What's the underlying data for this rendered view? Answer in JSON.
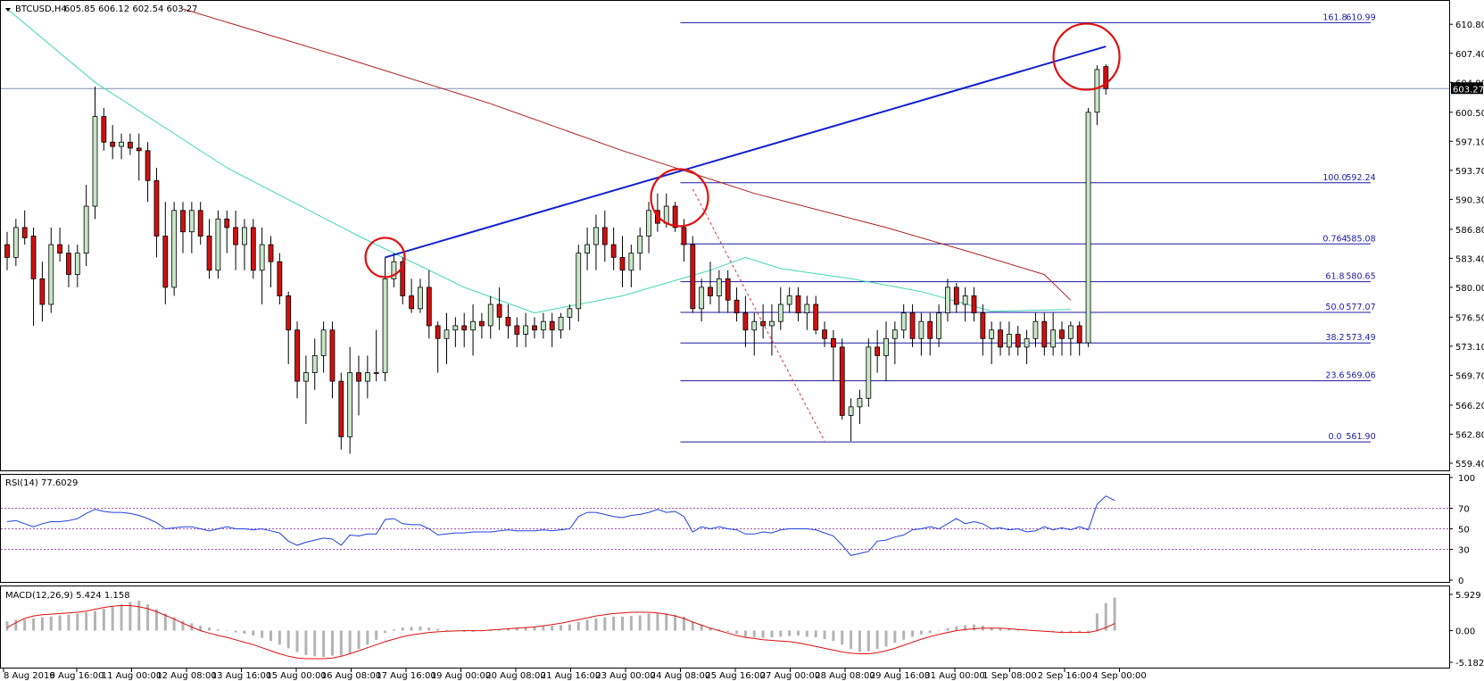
{
  "header": {
    "symbol": "BTCUSD,H4",
    "ohlc": "605.85 606.12 602.54 603.27",
    "current_price_label": "603.27"
  },
  "rsi_header": "RSI(14) 77.6029",
  "macd_header": "MACD(12,26,9) 5.424 1.158",
  "colors": {
    "bull_body": "#c8e6c8",
    "bear_body": "#d01010",
    "trendline": "#1020d0",
    "fib_line": "#1a1aa0",
    "ma_fast": "#40d8b0",
    "ma_slow": "#b02020",
    "circle": "#e01010",
    "rsi_line": "#2040e0",
    "macd_hist": "#b4b4b4",
    "macd_signal": "#e01010"
  },
  "chart_data": [
    {
      "type": "candlestick",
      "title": "BTCUSD,H4",
      "ylim": [
        559.4,
        612.6
      ],
      "y_ticks": [
        "610.80",
        "607.40",
        "604.00",
        "600.50",
        "597.10",
        "593.70",
        "590.30",
        "586.80",
        "583.40",
        "580.00",
        "576.50",
        "573.10",
        "569.70",
        "566.20",
        "562.80",
        "559.40"
      ],
      "x_ticks": [
        "8 Aug 2016",
        "9 Aug 16:00",
        "11 Aug 00:00",
        "12 Aug 08:00",
        "13 Aug 16:00",
        "15 Aug 00:00",
        "16 Aug 08:00",
        "17 Aug 16:00",
        "19 Aug 00:00",
        "20 Aug 08:00",
        "21 Aug 16:00",
        "23 Aug 00:00",
        "24 Aug 08:00",
        "25 Aug 16:00",
        "27 Aug 00:00",
        "28 Aug 08:00",
        "29 Aug 16:00",
        "31 Aug 00:00",
        "1 Sep 08:00",
        "2 Sep 16:00",
        "4 Sep 00:00"
      ],
      "fib_levels": [
        {
          "label": "161.8",
          "price": "610.99",
          "value": 610.99
        },
        {
          "label": "100.0",
          "price": "592.24",
          "value": 592.24
        },
        {
          "label": "0.764",
          "price": "585.08",
          "value": 585.08
        },
        {
          "label": "61.8",
          "price": "580.65",
          "value": 580.65
        },
        {
          "label": "50.0",
          "price": "577.07",
          "value": 577.07
        },
        {
          "label": "38.2",
          "price": "573.49",
          "value": 573.49
        },
        {
          "label": "23.6",
          "price": "569.06",
          "value": 569.06
        },
        {
          "label": "0.0",
          "price": "561.90",
          "value": 561.9
        }
      ],
      "current_price": 603.27,
      "candles": [
        [
          585,
          586.5,
          582,
          583.5
        ],
        [
          583.5,
          588,
          582.5,
          587
        ],
        [
          587,
          589,
          585,
          585.8
        ],
        [
          586,
          587,
          575.5,
          581
        ],
        [
          581,
          583,
          576,
          578
        ],
        [
          578,
          587,
          577,
          585
        ],
        [
          585,
          587,
          583,
          584
        ],
        [
          584,
          585,
          580,
          581.5
        ],
        [
          581.5,
          585,
          580,
          584
        ],
        [
          584,
          592,
          582.5,
          589.5
        ],
        [
          589.5,
          603.5,
          588,
          600
        ],
        [
          600,
          601,
          596,
          597
        ],
        [
          597,
          599,
          595,
          596.5
        ],
        [
          596.5,
          598,
          595,
          597
        ],
        [
          597,
          598,
          595.5,
          596.3
        ],
        [
          596.3,
          598,
          592.5,
          596
        ],
        [
          596,
          597,
          590,
          592.5
        ],
        [
          592.5,
          594,
          583.5,
          586
        ],
        [
          586,
          590,
          578,
          580
        ],
        [
          580,
          590,
          579,
          589
        ],
        [
          589,
          590,
          584,
          586.5
        ],
        [
          586.5,
          590,
          584,
          589
        ],
        [
          589,
          590,
          585,
          586
        ],
        [
          586,
          588,
          581,
          582
        ],
        [
          582,
          589,
          581,
          588
        ],
        [
          588,
          589,
          584,
          587
        ],
        [
          587,
          589,
          582,
          585
        ],
        [
          585,
          588,
          582,
          587
        ],
        [
          587,
          588,
          581,
          582
        ],
        [
          582,
          587,
          578,
          585
        ],
        [
          585,
          586,
          580,
          583
        ],
        [
          583,
          584,
          578,
          579
        ],
        [
          579,
          579.5,
          571,
          575
        ],
        [
          575,
          576,
          567,
          569
        ],
        [
          569,
          572,
          564,
          570
        ],
        [
          570,
          574,
          568,
          572
        ],
        [
          572,
          576,
          570,
          575
        ],
        [
          575,
          576,
          567,
          569
        ],
        [
          569,
          570,
          561,
          562.5
        ],
        [
          562.5,
          573,
          560.5,
          570
        ],
        [
          570,
          572,
          565,
          569
        ],
        [
          569,
          572,
          567,
          570
        ],
        [
          570,
          575,
          569,
          570
        ],
        [
          570,
          583.5,
          569,
          581
        ],
        [
          581,
          584,
          580,
          583
        ],
        [
          583,
          583.5,
          578,
          579
        ],
        [
          579,
          581,
          577,
          577.5
        ],
        [
          577.5,
          581,
          577,
          580
        ],
        [
          580,
          582,
          574,
          575.5
        ],
        [
          575.5,
          576,
          570,
          574
        ],
        [
          574,
          577,
          571,
          575
        ],
        [
          575,
          576.5,
          573,
          575.5
        ],
        [
          575.5,
          577,
          573,
          575
        ],
        [
          575,
          578,
          572,
          576
        ],
        [
          576,
          577,
          574,
          575.5
        ],
        [
          575.5,
          579,
          574,
          578
        ],
        [
          578,
          580,
          575,
          576.5
        ],
        [
          576.5,
          578,
          574,
          575.5
        ],
        [
          575.5,
          576.5,
          573,
          574.5
        ],
        [
          574.5,
          577,
          573,
          575.5
        ],
        [
          575.5,
          576.5,
          574,
          575
        ],
        [
          575,
          577,
          574,
          576
        ],
        [
          576,
          577,
          573,
          575
        ],
        [
          575,
          577,
          574,
          576.5
        ],
        [
          576.5,
          578,
          575,
          577.5
        ],
        [
          577.5,
          585,
          576,
          584
        ],
        [
          584,
          587,
          582,
          585
        ],
        [
          585,
          588.5,
          582,
          587
        ],
        [
          587,
          589,
          583,
          585
        ],
        [
          585,
          587,
          582,
          583.5
        ],
        [
          583.5,
          586,
          580,
          582
        ],
        [
          582,
          585,
          580,
          584
        ],
        [
          584,
          587,
          582,
          586
        ],
        [
          586,
          590,
          584,
          589
        ],
        [
          589,
          591,
          586.5,
          587.5
        ],
        [
          587.5,
          591,
          587,
          589.5
        ],
        [
          589.5,
          590,
          586.5,
          587
        ],
        [
          587,
          588,
          583,
          585
        ],
        [
          585,
          586,
          577,
          577.5
        ],
        [
          577.5,
          581,
          576,
          580
        ],
        [
          580,
          583,
          578,
          579
        ],
        [
          579,
          582,
          577,
          581
        ],
        [
          581,
          582,
          577,
          578.5
        ],
        [
          578.5,
          580,
          576,
          577
        ],
        [
          577,
          579,
          573,
          575
        ],
        [
          575,
          577,
          572,
          576
        ],
        [
          576,
          578,
          574,
          575.5
        ],
        [
          575.5,
          578,
          572,
          576
        ],
        [
          576,
          580,
          575,
          578
        ],
        [
          578,
          580,
          577,
          579
        ],
        [
          579,
          580,
          576,
          577
        ],
        [
          577,
          579,
          575,
          578
        ],
        [
          578,
          579,
          574.5,
          575
        ],
        [
          575,
          576,
          573,
          574
        ],
        [
          574,
          575,
          569,
          573
        ],
        [
          573,
          574,
          564.5,
          565
        ],
        [
          565,
          567,
          562,
          566
        ],
        [
          566,
          568,
          564,
          567
        ],
        [
          567,
          574,
          566,
          573
        ],
        [
          573,
          575,
          570,
          572
        ],
        [
          572,
          576,
          569,
          574
        ],
        [
          574,
          576,
          571,
          575
        ],
        [
          575,
          578,
          574,
          577
        ],
        [
          577,
          578,
          573,
          574
        ],
        [
          574,
          577,
          572,
          576
        ],
        [
          576,
          577,
          572,
          574
        ],
        [
          574,
          578,
          573,
          577
        ],
        [
          577,
          581,
          576,
          580
        ],
        [
          580,
          580.5,
          577,
          578
        ],
        [
          578,
          580,
          576,
          579
        ],
        [
          579,
          580,
          576,
          577
        ],
        [
          577,
          578,
          572,
          574
        ],
        [
          574,
          576,
          571,
          575
        ],
        [
          575,
          576,
          572,
          573
        ],
        [
          573,
          576,
          572,
          574.5
        ],
        [
          574.5,
          575.5,
          572,
          573
        ],
        [
          573,
          575,
          571,
          574
        ],
        [
          574,
          577,
          573,
          576
        ],
        [
          576,
          577,
          572,
          573
        ],
        [
          573,
          577,
          572,
          575
        ],
        [
          575,
          576,
          572,
          574
        ],
        [
          574,
          576,
          572,
          575.5
        ],
        [
          575.5,
          576,
          572,
          573.5
        ],
        [
          573.5,
          601,
          573,
          600.5
        ],
        [
          600.5,
          606,
          599,
          605.5
        ],
        [
          605.85,
          606.12,
          602.54,
          603.27
        ]
      ],
      "ma_slow": [
        [
          20,
          612.6
        ],
        [
          38,
          607
        ],
        [
          55,
          601.5
        ],
        [
          70,
          596
        ],
        [
          85,
          591
        ],
        [
          100,
          587
        ],
        [
          110,
          584
        ],
        [
          118,
          581.5
        ],
        [
          121,
          578.5
        ]
      ],
      "ma_fast": [
        [
          0,
          612.6
        ],
        [
          10,
          604
        ],
        [
          25,
          594
        ],
        [
          40,
          586
        ],
        [
          52,
          580
        ],
        [
          60,
          577
        ],
        [
          70,
          579
        ],
        [
          80,
          582
        ],
        [
          84,
          583.5
        ],
        [
          88,
          582.2
        ],
        [
          96,
          581
        ],
        [
          104,
          579.5
        ],
        [
          112,
          577.2
        ],
        [
          121,
          577.4
        ]
      ],
      "trendline": [
        [
          43,
          583.5
        ],
        [
          125,
          608.2
        ]
      ],
      "dashed_line": [
        [
          78,
          591.5
        ],
        [
          93,
          562
        ]
      ],
      "circles": [
        [
          43,
          583.5
        ],
        [
          76.5,
          590.5
        ],
        [
          122.8,
          607
        ]
      ],
      "fib_start_index": 77
    },
    {
      "type": "line",
      "title": "RSI(14) 77.6029",
      "ylim": [
        0,
        100
      ],
      "y_ticks": [
        "100",
        "70",
        "50",
        "30",
        "0"
      ],
      "levels": [
        70,
        50,
        30
      ],
      "values": [
        57,
        58,
        55,
        52,
        55,
        57,
        57,
        58,
        60,
        65,
        69,
        67,
        66,
        66,
        65,
        63,
        60,
        56,
        50,
        51,
        52,
        52,
        50,
        48,
        50,
        52,
        50,
        50,
        49,
        50,
        48,
        46,
        38,
        34,
        37,
        39,
        41,
        40,
        34,
        44,
        43,
        45,
        45,
        59,
        60,
        55,
        54,
        54,
        50,
        44,
        45,
        46,
        46,
        47,
        47,
        47,
        48,
        49,
        48,
        48,
        48,
        49,
        48,
        49,
        50,
        62,
        66,
        66,
        64,
        62,
        61,
        63,
        64,
        66,
        69,
        66,
        67,
        62,
        47,
        52,
        50,
        52,
        50,
        49,
        45,
        45,
        47,
        46,
        49,
        50,
        50,
        50,
        49,
        46,
        43,
        34,
        24,
        26,
        28,
        38,
        39,
        42,
        44,
        49,
        50,
        52,
        50,
        55,
        60,
        55,
        57,
        55,
        50,
        51,
        49,
        50,
        47,
        48,
        52,
        49,
        51,
        49,
        52,
        49,
        74,
        82,
        77.6
      ]
    },
    {
      "type": "bar+line",
      "title": "MACD(12,26,9) 5.424 1.158",
      "ylim": [
        -5.182,
        5.929
      ],
      "y_ticks": [
        "5.929",
        "0.00",
        "-5.182"
      ],
      "histogram": [
        1.5,
        1.8,
        1.8,
        2,
        2.2,
        2.3,
        2.5,
        2.6,
        2.8,
        3,
        3.2,
        3.6,
        3.9,
        4.3,
        4.7,
        4.9,
        4.3,
        3.5,
        2.8,
        2.2,
        1.6,
        1.2,
        0.8,
        0.5,
        0.2,
        0,
        -0.3,
        -0.5,
        -0.8,
        -1.2,
        -1.7,
        -2.3,
        -2.9,
        -3.5,
        -4,
        -4.2,
        -4.3,
        -4.1,
        -4.1,
        -3.8,
        -3,
        -2.3,
        -1.5,
        -0.4,
        0.2,
        0.5,
        0.6,
        0.7,
        0.5,
        0.3,
        0.1,
        0,
        -0.2,
        -0.2,
        -0.1,
        0,
        0.2,
        0.4,
        0.5,
        0.6,
        0.6,
        0.8,
        0.8,
        0.9,
        1,
        1.4,
        1.8,
        2,
        2.2,
        2.3,
        2.3,
        2.4,
        2.5,
        2.8,
        2.9,
        2.8,
        2.6,
        2.3,
        1.5,
        1,
        0.5,
        0.2,
        -0.2,
        -0.5,
        -1,
        -1.1,
        -1.2,
        -1.1,
        -1,
        -0.9,
        -0.8,
        -1,
        -1.1,
        -1.4,
        -1.7,
        -2.3,
        -3,
        -3.5,
        -3.4,
        -3,
        -2.6,
        -2,
        -1.5,
        -1,
        -0.6,
        -0.4,
        0,
        0.4,
        0.7,
        0.9,
        1,
        0.8,
        0.5,
        0.4,
        0.3,
        0.2,
        0.1,
        0,
        0,
        -0.1,
        -0.2,
        -0.3,
        -0.2,
        -0.2,
        2.8,
        4.5,
        5.4
      ],
      "signal": [
        0.5,
        1.3,
        2,
        2.4,
        2.6,
        2.7,
        2.8,
        2.9,
        3,
        3.2,
        3.5,
        3.8,
        4,
        4.1,
        4.1,
        3.9,
        3.6,
        3.1,
        2.5,
        1.9,
        1.2,
        0.6,
        0,
        -0.4,
        -0.8,
        -1.1,
        -1.5,
        -1.9,
        -2.3,
        -2.8,
        -3.3,
        -3.8,
        -4.2,
        -4.5,
        -4.6,
        -4.6,
        -4.6,
        -4.5,
        -4.2,
        -3.8,
        -3.3,
        -2.8,
        -2.3,
        -1.8,
        -1.4,
        -1,
        -0.7,
        -0.5,
        -0.3,
        -0.2,
        -0.1,
        -0.05,
        0,
        0,
        0,
        0.1,
        0.2,
        0.3,
        0.4,
        0.5,
        0.6,
        0.8,
        1,
        1.2,
        1.5,
        1.8,
        2.1,
        2.4,
        2.6,
        2.8,
        2.9,
        3,
        3,
        3,
        2.9,
        2.7,
        2.4,
        2,
        1.4,
        0.9,
        0.4,
        0,
        -0.4,
        -0.8,
        -1.1,
        -1.3,
        -1.5,
        -1.6,
        -1.7,
        -1.8,
        -2,
        -2.3,
        -2.6,
        -2.9,
        -3.2,
        -3.5,
        -3.7,
        -3.8,
        -3.8,
        -3.6,
        -3.3,
        -2.9,
        -2.4,
        -1.9,
        -1.4,
        -1,
        -0.6,
        -0.3,
        0,
        0.2,
        0.3,
        0.4,
        0.4,
        0.4,
        0.3,
        0.2,
        0.1,
        0,
        -0.1,
        -0.2,
        -0.3,
        -0.3,
        -0.3,
        -0.3,
        0,
        0.5,
        1.158
      ]
    }
  ]
}
